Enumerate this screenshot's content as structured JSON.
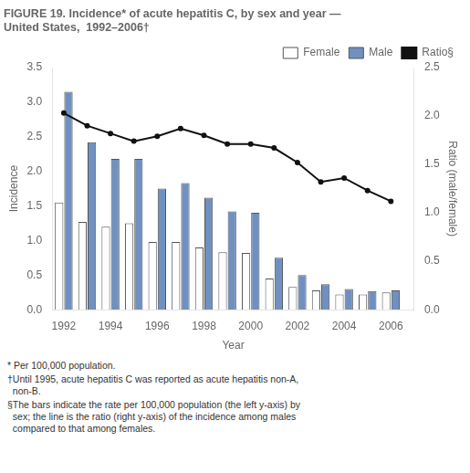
{
  "chart_data": {
    "type": "bar",
    "title": [
      "FIGURE 19. Incidence* of acute hepatitis C, by sex and year —",
      "United States,  1992–2006†"
    ],
    "x": [
      1992,
      1993,
      1994,
      1995,
      1996,
      1997,
      1998,
      1999,
      2000,
      2001,
      2002,
      2003,
      2004,
      2005,
      2006
    ],
    "xlabel": "Year",
    "xlim": [
      1991.5,
      2007.0
    ],
    "xticks": [
      1992,
      1994,
      1996,
      1998,
      2000,
      2002,
      2004,
      2006
    ],
    "ylabel": "Incidence",
    "ylim": [
      0,
      3.5
    ],
    "yticks": [
      {
        "value": 0,
        "label": "0.0"
      },
      0.5,
      {
        "value": 1,
        "label": "1.0"
      },
      1.5,
      {
        "value": 2,
        "label": "2.0"
      },
      2.5,
      {
        "value": 3,
        "label": "3.0"
      },
      3.5
    ],
    "y2label": "Ratio (male/female)",
    "y2lim": [
      0,
      2.5
    ],
    "y2ticks": [
      {
        "value": 0,
        "label": "0.0"
      },
      0.5,
      {
        "value": 1,
        "label": "1.0"
      },
      1.5,
      {
        "value": 2,
        "label": "2.0"
      },
      2.5
    ],
    "series": [
      {
        "name": "Female",
        "color": "#ffffff",
        "values": [
          1.55,
          1.27,
          1.2,
          1.25,
          0.98,
          0.98,
          0.9,
          0.83,
          0.82,
          0.45,
          0.33,
          0.28,
          0.22,
          0.22,
          0.25
        ]
      },
      {
        "name": "Male",
        "color": "#7090c0",
        "values": [
          3.15,
          2.42,
          2.18,
          2.18,
          1.75,
          1.83,
          1.62,
          1.42,
          1.4,
          0.75,
          0.5,
          0.37,
          0.3,
          0.27,
          0.28
        ]
      },
      {
        "name": "Ratio§",
        "type": "line",
        "axis": "y2",
        "color": "#111111",
        "values": [
          2.03,
          1.9,
          1.82,
          1.74,
          1.79,
          1.87,
          1.8,
          1.71,
          1.71,
          1.67,
          1.52,
          1.32,
          1.36,
          1.23,
          1.12
        ]
      }
    ],
    "legend": "upper right",
    "grid": false,
    "annotations": [
      "* Per 100,000 population.",
      "†Until 1995, acute hepatitis C was reported as acute hepatitis non-A,\n  non-B.",
      "§The bars indicate the rate per 100,000 population (the left y-axis) by\n  sex; the line is the ratio (right y-axis) of the incidence among males\n  compared to that among females."
    ]
  }
}
